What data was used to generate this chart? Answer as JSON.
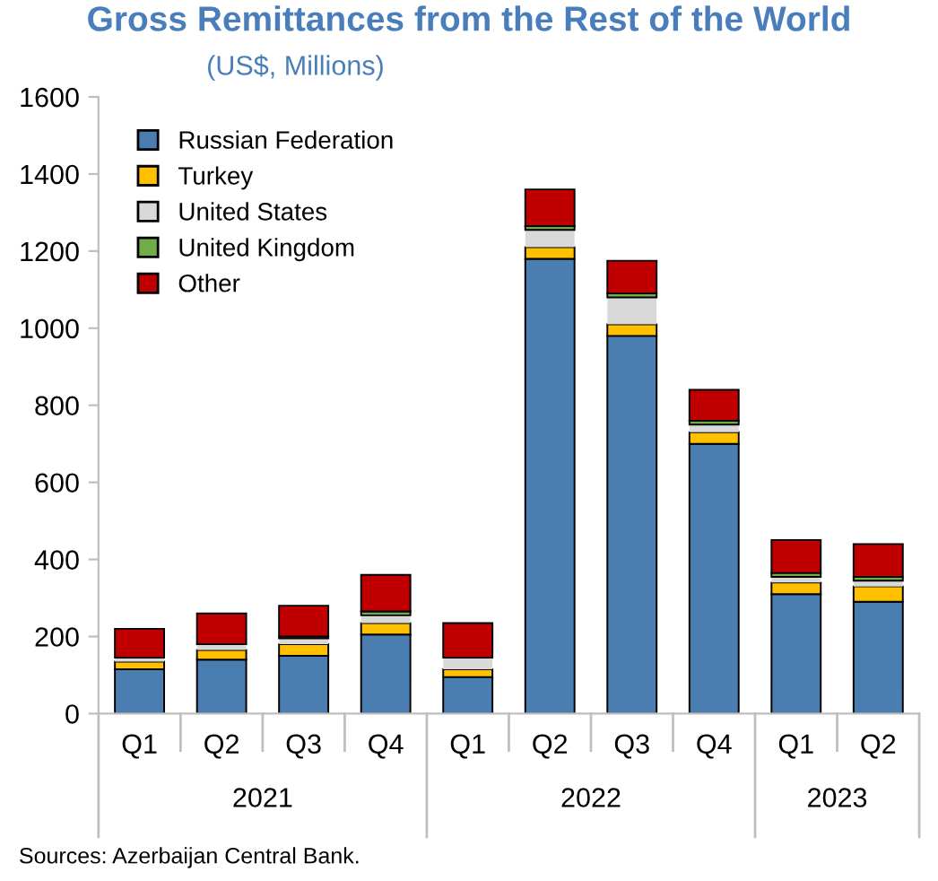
{
  "chart_data": {
    "type": "bar",
    "stacked": true,
    "title": "Gross Remittances from the Rest of the World",
    "subtitle": "(US$, Millions)",
    "categories": [
      "Q1",
      "Q2",
      "Q3",
      "Q4",
      "Q1",
      "Q2",
      "Q3",
      "Q4",
      "Q1",
      "Q2"
    ],
    "series": [
      {
        "name": "Russian Federation",
        "color": "#4a7eb0",
        "values": [
          115,
          140,
          150,
          205,
          95,
          1180,
          980,
          700,
          310,
          290
        ]
      },
      {
        "name": "Turkey",
        "color": "#ffc000",
        "values": [
          20,
          25,
          30,
          30,
          20,
          30,
          30,
          30,
          30,
          40
        ]
      },
      {
        "name": "United States",
        "color": "#d9d9d9",
        "values": [
          10,
          15,
          15,
          20,
          30,
          45,
          70,
          20,
          15,
          15
        ]
      },
      {
        "name": "United Kingdom",
        "color": "#70ad47",
        "values": [
          null,
          null,
          5,
          10,
          null,
          10,
          10,
          10,
          10,
          10
        ]
      },
      {
        "name": "Other",
        "color": "#c00000",
        "values": [
          75,
          80,
          80,
          95,
          90,
          95,
          85,
          80,
          85,
          85
        ]
      }
    ],
    "ylim": [
      0,
      1600
    ],
    "yticks": [
      0,
      200,
      400,
      600,
      800,
      1000,
      1200,
      1400,
      1600
    ],
    "grid": false,
    "legend": "top left",
    "annotations": [
      "2021",
      "2022",
      "2023",
      "Sources: Azerbaijan Central Bank."
    ]
  }
}
